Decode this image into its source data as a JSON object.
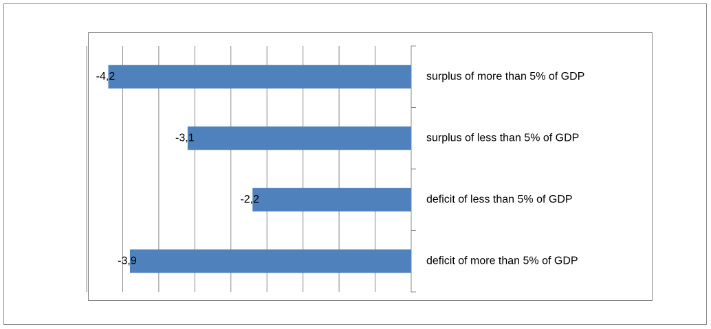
{
  "chart_data": {
    "type": "bar",
    "orientation": "horizontal",
    "categories": [
      "surplus of more than 5% of GDP",
      "surplus of less than 5% of GDP",
      "deficit of less than 5% of GDP",
      "deficit of more than 5% of GDP"
    ],
    "values": [
      -4.2,
      -3.1,
      -2.2,
      -3.9
    ],
    "value_labels": [
      "-4,2",
      "-3,1",
      "-2,2",
      "-3,9"
    ],
    "color": "#4f81bd",
    "xlim": [
      -4.5,
      0
    ],
    "xticks": [
      -4.5,
      -4,
      -3.5,
      -3,
      -2.5,
      -2,
      -1.5,
      -1,
      -0.5,
      0
    ],
    "grid": true
  }
}
